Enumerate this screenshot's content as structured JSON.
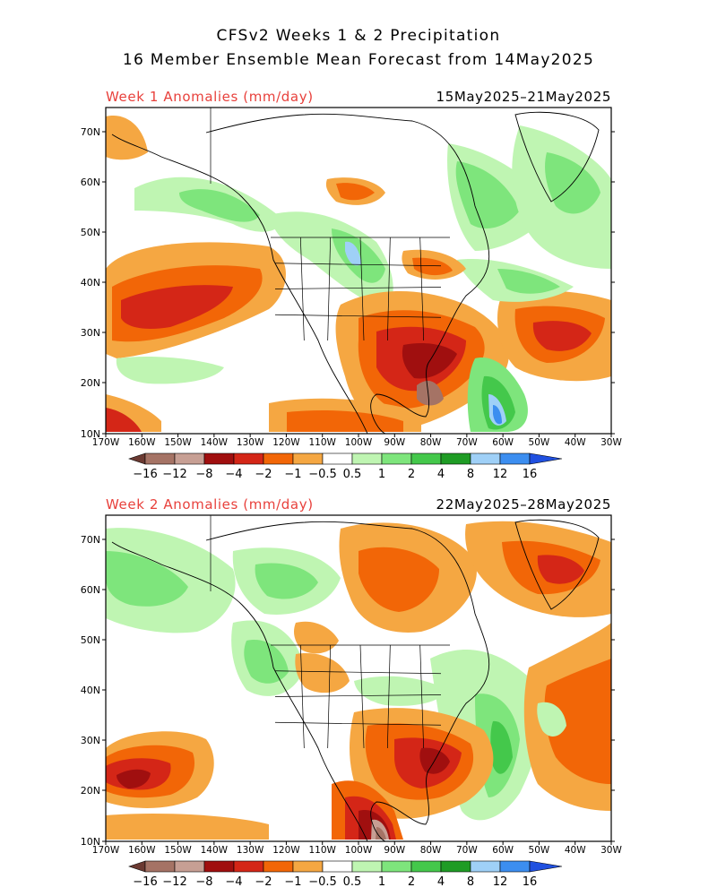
{
  "title_line1": "CFSv2 Weeks 1 & 2 Precipitation",
  "title_line2": "16 Member Ensemble Mean Forecast from 14May2025",
  "panels": [
    {
      "id": "week1",
      "label": "Week 1 Anomalies (mm/day)",
      "date_range": "15May2025–21May2025"
    },
    {
      "id": "week2",
      "label": "Week 2 Anomalies (mm/day)",
      "date_range": "22May2025–28May2025"
    }
  ],
  "lat_labels": [
    "70N",
    "60N",
    "50N",
    "40N",
    "30N",
    "20N",
    "10N"
  ],
  "lon_labels": [
    "170W",
    "160W",
    "150W",
    "140W",
    "130W",
    "120W",
    "110W",
    "100W",
    "90W",
    "80W",
    "70W",
    "60W",
    "50W",
    "40W",
    "30W"
  ],
  "legend": {
    "labels": [
      "−16",
      "−12",
      "−8",
      "−4",
      "−2",
      "−1",
      "−0.5",
      "0.5",
      "1",
      "2",
      "4",
      "8",
      "12",
      "16"
    ],
    "colors": [
      "#6b3a32",
      "#a57365",
      "#c79f94",
      "#a00f0f",
      "#d42617",
      "#f26607",
      "#f5a742",
      "#ffffff",
      "#bff5b2",
      "#7ee57c",
      "#44c84b",
      "#1f9c25",
      "#9fd0f7",
      "#3c8ef0",
      "#2050e0"
    ]
  }
}
